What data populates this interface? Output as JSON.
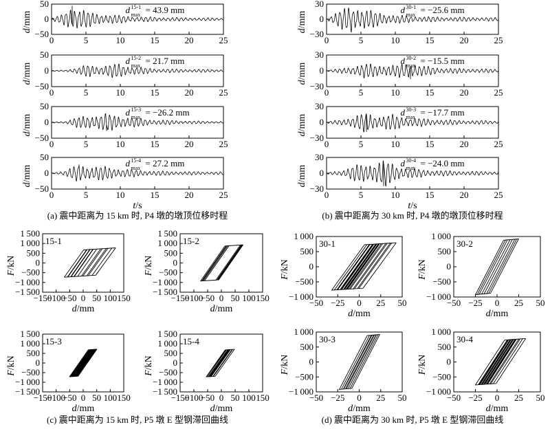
{
  "figure": {
    "captions": [
      "(a) 震中距离为 15 km 时, P4 墩的墩顶位移时程",
      "(b) 震中距离为 30 km 时, P4 墩的墩顶位移时程",
      "(c) 震中距离为 15 km 时, P5 墩 E 型钢滞回曲线",
      "(d) 震中距离为 30 km 时, P5 墩 E 型钢滞回曲线"
    ]
  },
  "chart_data": [
    {
      "type": "line",
      "id": "a1",
      "xlabel": "",
      "ylabel": "d/mm",
      "xlim": [
        0,
        25
      ],
      "ylim": [
        -50,
        50
      ],
      "xticks": [
        0,
        5,
        10,
        15,
        20,
        25
      ],
      "yticks": [
        -50,
        0,
        50
      ],
      "annotation": {
        "base": "d",
        "sup": "15-1",
        "sub": "max",
        "text": "= 43.9 mm"
      },
      "series": [
        {
          "peak_value": 43.9,
          "peak_time": 3.0,
          "envelope": [
            [
              0,
              4
            ],
            [
              1.5,
              14
            ],
            [
              3,
              44
            ],
            [
              4.5,
              30
            ],
            [
              6,
              20
            ],
            [
              8,
              16
            ],
            [
              10,
              12
            ],
            [
              13,
              8
            ],
            [
              17,
              6
            ],
            [
              21,
              5
            ],
            [
              25,
              4
            ]
          ]
        }
      ]
    },
    {
      "type": "line",
      "id": "a2",
      "xlabel": "",
      "ylabel": "d/mm",
      "xlim": [
        0,
        25
      ],
      "ylim": [
        -50,
        50
      ],
      "xticks": [
        0,
        5,
        10,
        15,
        20,
        25
      ],
      "yticks": [
        -50,
        0,
        50
      ],
      "annotation": {
        "base": "d",
        "sup": "15-2",
        "sub": "max",
        "text": "= 21.7 mm"
      },
      "series": [
        {
          "peak_value": 21.7,
          "peak_time": 9.8,
          "envelope": [
            [
              0,
              1
            ],
            [
              2,
              3
            ],
            [
              4,
              10
            ],
            [
              5.4,
              20
            ],
            [
              7,
              14
            ],
            [
              9.8,
              22
            ],
            [
              11,
              16
            ],
            [
              13,
              10
            ],
            [
              16,
              6
            ],
            [
              20,
              5
            ],
            [
              25,
              4
            ]
          ]
        }
      ]
    },
    {
      "type": "line",
      "id": "a3",
      "xlabel": "",
      "ylabel": "d/mm",
      "xlim": [
        0,
        25
      ],
      "ylim": [
        -50,
        50
      ],
      "xticks": [
        0,
        5,
        10,
        15,
        20,
        25
      ],
      "yticks": [
        -50,
        0,
        50
      ],
      "annotation": {
        "base": "d",
        "sup": "15-3",
        "sub": "max",
        "text": "= −26.2 mm"
      },
      "series": [
        {
          "peak_value": -26.2,
          "peak_time": 8.0,
          "envelope": [
            [
              0,
              1
            ],
            [
              2,
              4
            ],
            [
              3.5,
              14
            ],
            [
              5.5,
              22
            ],
            [
              8,
              26
            ],
            [
              10,
              20
            ],
            [
              12,
              14
            ],
            [
              15,
              8
            ],
            [
              19,
              5
            ],
            [
              25,
              3
            ]
          ]
        }
      ]
    },
    {
      "type": "line",
      "id": "a4",
      "xlabel": "t/s",
      "ylabel": "d/mm",
      "xlim": [
        0,
        25
      ],
      "ylim": [
        -50,
        50
      ],
      "xticks": [
        0,
        5,
        10,
        15,
        20,
        25
      ],
      "yticks": [
        -50,
        0,
        50
      ],
      "annotation": {
        "base": "d",
        "sup": "15-4",
        "sub": "max",
        "text": "= 27.2 mm"
      },
      "series": [
        {
          "peak_value": 27.2,
          "peak_time": 4.0,
          "envelope": [
            [
              0,
              1
            ],
            [
              2,
              8
            ],
            [
              4,
              27
            ],
            [
              5.5,
              22
            ],
            [
              8,
              20
            ],
            [
              10,
              14
            ],
            [
              13,
              9
            ],
            [
              17,
              6
            ],
            [
              21,
              5
            ],
            [
              25,
              4
            ]
          ]
        }
      ]
    },
    {
      "type": "line",
      "id": "b1",
      "xlabel": "",
      "ylabel": "d/mm",
      "xlim": [
        0,
        25
      ],
      "ylim": [
        -30,
        30
      ],
      "xticks": [
        0,
        5,
        10,
        15,
        20,
        25
      ],
      "yticks": [
        -30,
        0,
        30
      ],
      "annotation": {
        "base": "d",
        "sup": "30-1",
        "sub": "max",
        "text": "= −25.6 mm"
      },
      "series": [
        {
          "peak_value": -25.6,
          "peak_time": 3.6,
          "envelope": [
            [
              0,
              2
            ],
            [
              1.5,
              14
            ],
            [
              3.6,
              26
            ],
            [
              5,
              22
            ],
            [
              6.5,
              16
            ],
            [
              8,
              12
            ],
            [
              10,
              8
            ],
            [
              13,
              6
            ],
            [
              17,
              4
            ],
            [
              21,
              4
            ],
            [
              25,
              3
            ]
          ]
        }
      ]
    },
    {
      "type": "line",
      "id": "b2",
      "xlabel": "",
      "ylabel": "d/mm",
      "xlim": [
        0,
        25
      ],
      "ylim": [
        -30,
        30
      ],
      "xticks": [
        0,
        5,
        10,
        15,
        20,
        25
      ],
      "yticks": [
        -30,
        0,
        30
      ],
      "annotation": {
        "base": "d",
        "sup": "30-2",
        "sub": "max",
        "text": "= −15.5 mm"
      },
      "series": [
        {
          "peak_value": -15.5,
          "peak_time": 12.2,
          "envelope": [
            [
              0,
              1
            ],
            [
              2,
              4
            ],
            [
              4,
              9
            ],
            [
              5.5,
              13
            ],
            [
              8,
              11
            ],
            [
              10,
              10
            ],
            [
              12.2,
              16
            ],
            [
              14,
              9
            ],
            [
              17,
              5
            ],
            [
              21,
              4
            ],
            [
              25,
              3
            ]
          ]
        }
      ]
    },
    {
      "type": "line",
      "id": "b3",
      "xlabel": "",
      "ylabel": "d/mm",
      "xlim": [
        0,
        25
      ],
      "ylim": [
        -30,
        30
      ],
      "xticks": [
        0,
        5,
        10,
        15,
        20,
        25
      ],
      "yticks": [
        -30,
        0,
        30
      ],
      "annotation": {
        "base": "d",
        "sup": "30-3",
        "sub": "max",
        "text": "= −17.7 mm"
      },
      "series": [
        {
          "peak_value": -17.7,
          "peak_time": 5.8,
          "envelope": [
            [
              0,
              1
            ],
            [
              2,
              5
            ],
            [
              4,
              11
            ],
            [
              5.8,
              18
            ],
            [
              7.5,
              12
            ],
            [
              9.5,
              14
            ],
            [
              12,
              9
            ],
            [
              15,
              6
            ],
            [
              19,
              4
            ],
            [
              25,
              3
            ]
          ]
        }
      ]
    },
    {
      "type": "line",
      "id": "b4",
      "xlabel": "t/s",
      "ylabel": "d/mm",
      "xlim": [
        0,
        25
      ],
      "ylim": [
        -30,
        30
      ],
      "xticks": [
        0,
        5,
        10,
        15,
        20,
        25
      ],
      "yticks": [
        -30,
        0,
        30
      ],
      "annotation": {
        "base": "d",
        "sup": "30-4",
        "sub": "max",
        "text": "= −24.0 mm"
      },
      "series": [
        {
          "peak_value": -24.0,
          "peak_time": 8.3,
          "envelope": [
            [
              0,
              1
            ],
            [
              2,
              5
            ],
            [
              4,
              14
            ],
            [
              6,
              17
            ],
            [
              8.3,
              24
            ],
            [
              10,
              15
            ],
            [
              12,
              9
            ],
            [
              15,
              6
            ],
            [
              19,
              4
            ],
            [
              25,
              3
            ]
          ]
        }
      ]
    },
    {
      "type": "line",
      "id": "c1",
      "tag": "15-1",
      "xlabel": "d/mm",
      "ylabel": "F/kN",
      "xlim": [
        -150,
        150
      ],
      "ylim": [
        -1500,
        1500
      ],
      "xticks": [
        -150,
        -100,
        -50,
        0,
        50,
        100,
        150
      ],
      "yticks": [
        1500,
        1000,
        500,
        0,
        -500,
        -1000,
        -1500
      ],
      "series": [
        {
          "k": 20,
          "yield": 700,
          "d_min": -70,
          "d_max": 120,
          "inner_loops": 6
        }
      ]
    },
    {
      "type": "line",
      "id": "c2",
      "tag": "15-2",
      "xlabel": "d/mm",
      "ylabel": "F/kN",
      "xlim": [
        -150,
        150
      ],
      "ylim": [
        -1500,
        1500
      ],
      "xticks": [
        -150,
        -100,
        -50,
        0,
        50,
        100,
        150
      ],
      "yticks": [
        1500,
        1000,
        500,
        0,
        -500,
        -1000,
        -1500
      ],
      "series": [
        {
          "k": 20,
          "yield": 900,
          "d_min": -20,
          "d_max": 28,
          "inner_loops": 4
        }
      ]
    },
    {
      "type": "line",
      "id": "c3",
      "tag": "15-3",
      "xlabel": "d/mm",
      "ylabel": "F/kN",
      "xlim": [
        -150,
        150
      ],
      "ylim": [
        -1500,
        1500
      ],
      "xticks": [
        -150,
        -100,
        -50,
        0,
        50,
        100,
        150
      ],
      "yticks": [
        1500,
        1000,
        500,
        0,
        -500,
        -1000,
        -1500
      ],
      "series": [
        {
          "k": 20,
          "yield": 700,
          "d_min": -45,
          "d_max": 45,
          "inner_loops": 8
        }
      ]
    },
    {
      "type": "line",
      "id": "c4",
      "tag": "15-4",
      "xlabel": "d/mm",
      "ylabel": "F/kN",
      "xlim": [
        -150,
        150
      ],
      "ylim": [
        -1500,
        1500
      ],
      "xticks": [
        -150,
        -100,
        -50,
        0,
        50,
        100,
        150
      ],
      "yticks": [
        1500,
        1000,
        500,
        0,
        -500,
        -1000,
        -1500
      ],
      "series": [
        {
          "k": 20,
          "yield": 700,
          "d_min": -55,
          "d_max": 30,
          "inner_loops": 7
        }
      ]
    },
    {
      "type": "line",
      "id": "d1",
      "tag": "30-1",
      "xlabel": "d/mm",
      "ylabel": "F/kN",
      "xlim": [
        -50,
        50
      ],
      "ylim": [
        -1000,
        1000
      ],
      "xticks": [
        -50,
        -25,
        0,
        25,
        50
      ],
      "yticks": [
        1000,
        500,
        0,
        -500,
        -1000
      ],
      "series": [
        {
          "k": 40,
          "yield": 750,
          "d_min": -32,
          "d_max": 43,
          "inner_loops": 9
        }
      ]
    },
    {
      "type": "line",
      "id": "d2",
      "tag": "30-2",
      "xlabel": "d/mm",
      "ylabel": "F/kN",
      "xlim": [
        -50,
        50
      ],
      "ylim": [
        -1000,
        1000
      ],
      "xticks": [
        -50,
        -25,
        0,
        25,
        50
      ],
      "yticks": [
        1000,
        500,
        0,
        -500,
        -1000
      ],
      "series": [
        {
          "k": 55,
          "yield": 900,
          "d_min": -15,
          "d_max": 15,
          "inner_loops": 3
        }
      ]
    },
    {
      "type": "line",
      "id": "d3",
      "tag": "30-3",
      "xlabel": "d/mm",
      "ylabel": "F/kN",
      "xlim": [
        -50,
        50
      ],
      "ylim": [
        -1000,
        1000
      ],
      "xticks": [
        -50,
        -25,
        0,
        25,
        50
      ],
      "yticks": [
        1000,
        500,
        0,
        -500,
        -1000
      ],
      "series": [
        {
          "k": 55,
          "yield": 900,
          "d_min": -18,
          "d_max": 20,
          "inner_loops": 4
        }
      ]
    },
    {
      "type": "line",
      "id": "d4",
      "tag": "30-4",
      "xlabel": "d/mm",
      "ylabel": "F/kN",
      "xlim": [
        -50,
        50
      ],
      "ylim": [
        -1000,
        1000
      ],
      "xticks": [
        -50,
        -25,
        0,
        25,
        50
      ],
      "yticks": [
        1000,
        500,
        0,
        -500,
        -1000
      ],
      "series": [
        {
          "k": 45,
          "yield": 750,
          "d_min": -25,
          "d_max": 33,
          "inner_loops": 8
        }
      ]
    }
  ]
}
